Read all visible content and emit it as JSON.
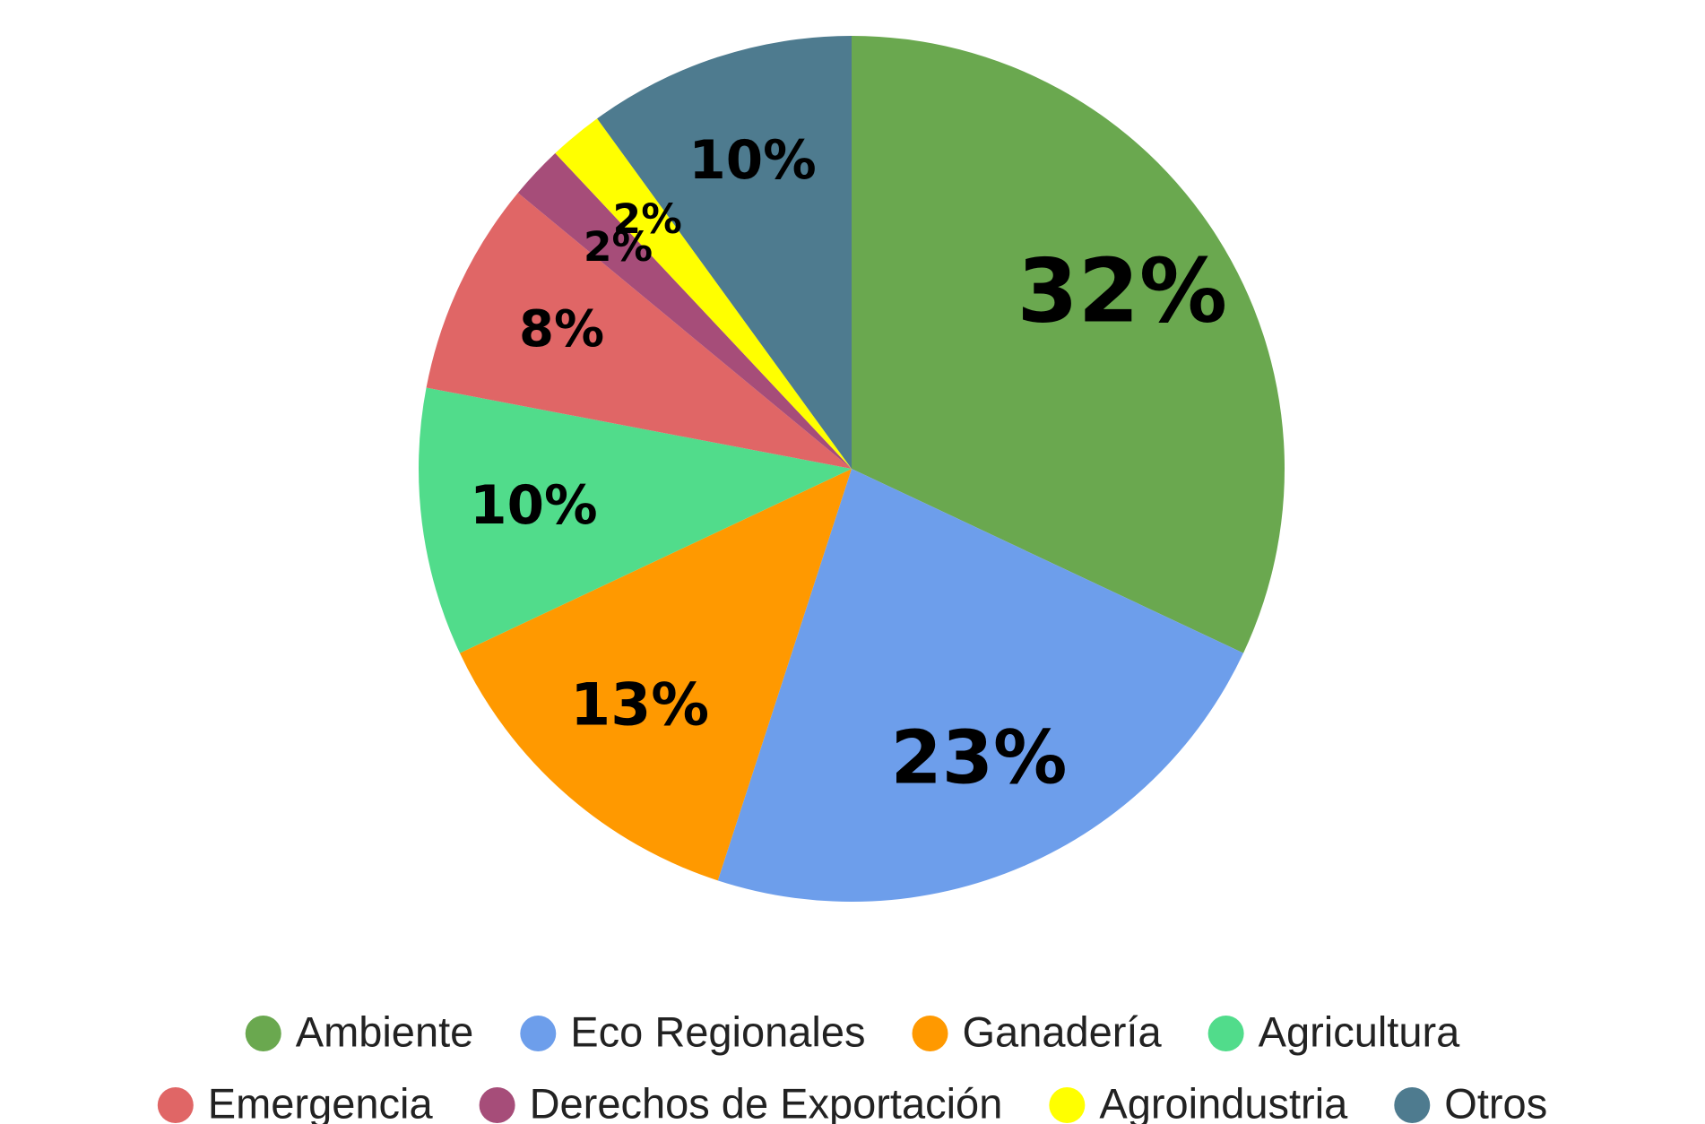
{
  "chart_data": {
    "type": "pie",
    "categories": [
      "Ambiente",
      "Eco Regionales",
      "Ganadería",
      "Agricultura",
      "Emergencia",
      "Derechos de Exportación",
      "Agroindustria",
      "Otros"
    ],
    "values": [
      32,
      23,
      13,
      10,
      8,
      2,
      2,
      10
    ],
    "value_labels": [
      "32%",
      "23%",
      "13%",
      "10%",
      "8%",
      "2%",
      "2%",
      "10%"
    ],
    "colors": [
      "#6aa84f",
      "#6d9eeb",
      "#ff9900",
      "#51dc8b",
      "#e06666",
      "#a64d79",
      "#ffff00",
      "#4e7b8f"
    ],
    "legend": "bottom"
  }
}
